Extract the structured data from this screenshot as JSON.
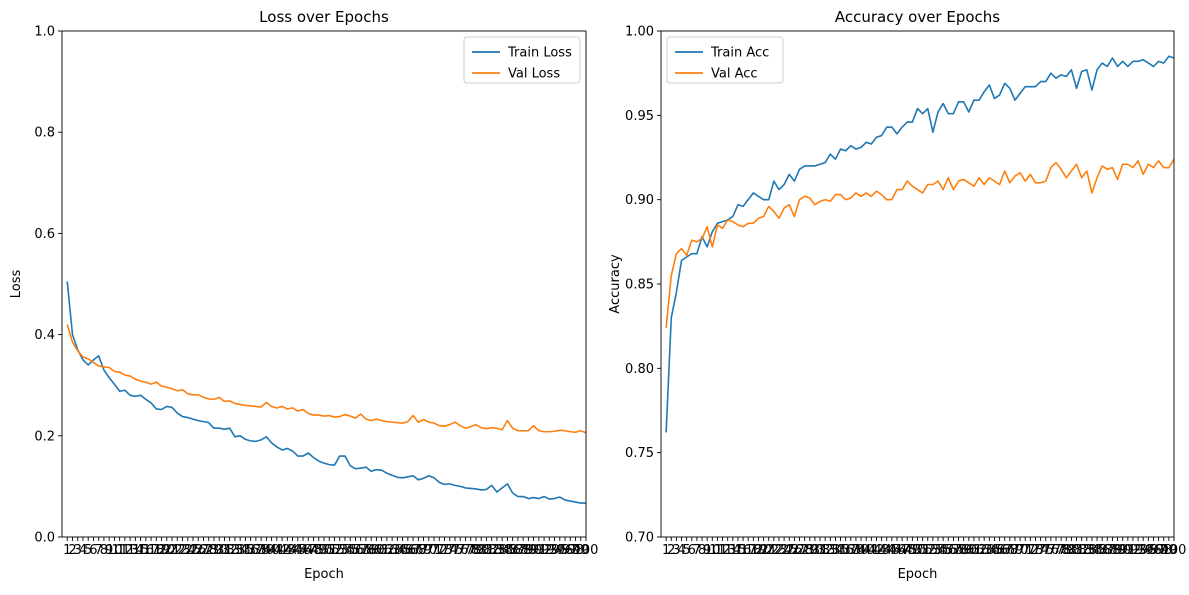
{
  "chart_data": [
    {
      "type": "line",
      "title": "Loss over Epochs",
      "xlabel": "Epoch",
      "ylabel": "Loss",
      "ylim": [
        0,
        1.0
      ],
      "yticks": [
        "0.0",
        "0.2",
        "0.4",
        "0.6",
        "0.8",
        "1.0"
      ],
      "xlim": [
        0,
        100
      ],
      "legend": "top-right",
      "grid": false,
      "series": [
        {
          "name": "Train Loss",
          "color": "#1f77b4",
          "values": [
            0.505,
            0.4,
            0.37,
            0.35,
            0.34,
            0.35,
            0.358,
            0.33,
            0.315,
            0.302,
            0.288,
            0.29,
            0.28,
            0.278,
            0.28,
            0.272,
            0.265,
            0.253,
            0.252,
            0.258,
            0.256,
            0.245,
            0.238,
            0.236,
            0.233,
            0.23,
            0.228,
            0.226,
            0.215,
            0.215,
            0.213,
            0.215,
            0.198,
            0.2,
            0.193,
            0.19,
            0.189,
            0.192,
            0.198,
            0.186,
            0.178,
            0.172,
            0.175,
            0.17,
            0.16,
            0.16,
            0.166,
            0.157,
            0.15,
            0.146,
            0.143,
            0.142,
            0.16,
            0.16,
            0.141,
            0.135,
            0.136,
            0.138,
            0.13,
            0.133,
            0.132,
            0.126,
            0.122,
            0.118,
            0.117,
            0.119,
            0.121,
            0.113,
            0.116,
            0.121,
            0.117,
            0.108,
            0.104,
            0.105,
            0.102,
            0.1,
            0.097,
            0.096,
            0.095,
            0.093,
            0.094,
            0.102,
            0.089,
            0.097,
            0.105,
            0.087,
            0.08,
            0.08,
            0.076,
            0.078,
            0.076,
            0.08,
            0.075,
            0.076,
            0.079,
            0.073,
            0.071,
            0.069,
            0.067,
            0.067
          ]
        },
        {
          "name": "Val Loss",
          "color": "#ff7f0e",
          "values": [
            0.42,
            0.385,
            0.368,
            0.356,
            0.352,
            0.345,
            0.338,
            0.336,
            0.335,
            0.327,
            0.326,
            0.32,
            0.318,
            0.312,
            0.308,
            0.306,
            0.302,
            0.306,
            0.298,
            0.296,
            0.293,
            0.289,
            0.291,
            0.283,
            0.281,
            0.281,
            0.276,
            0.273,
            0.272,
            0.276,
            0.268,
            0.269,
            0.264,
            0.262,
            0.26,
            0.259,
            0.258,
            0.257,
            0.266,
            0.258,
            0.255,
            0.258,
            0.253,
            0.255,
            0.249,
            0.252,
            0.244,
            0.241,
            0.241,
            0.239,
            0.24,
            0.237,
            0.238,
            0.242,
            0.239,
            0.235,
            0.243,
            0.233,
            0.23,
            0.233,
            0.23,
            0.228,
            0.227,
            0.226,
            0.225,
            0.228,
            0.24,
            0.227,
            0.232,
            0.227,
            0.225,
            0.22,
            0.219,
            0.222,
            0.227,
            0.22,
            0.215,
            0.218,
            0.222,
            0.216,
            0.214,
            0.216,
            0.215,
            0.212,
            0.23,
            0.215,
            0.21,
            0.21,
            0.21,
            0.22,
            0.21,
            0.208,
            0.208,
            0.209,
            0.211,
            0.21,
            0.208,
            0.207,
            0.21,
            0.206
          ]
        }
      ]
    },
    {
      "type": "line",
      "title": "Accuracy over Epochs",
      "xlabel": "Epoch",
      "ylabel": "Accuracy",
      "ylim": [
        0.7,
        1.0
      ],
      "yticks": [
        "0.70",
        "0.75",
        "0.80",
        "0.85",
        "0.90",
        "0.95",
        "1.00"
      ],
      "xlim": [
        0,
        100
      ],
      "legend": "top-left",
      "grid": false,
      "series": [
        {
          "name": "Train Acc",
          "color": "#1f77b4",
          "values": [
            0.762,
            0.83,
            0.845,
            0.864,
            0.866,
            0.868,
            0.868,
            0.878,
            0.872,
            0.881,
            0.886,
            0.887,
            0.888,
            0.89,
            0.897,
            0.896,
            0.9,
            0.904,
            0.902,
            0.9,
            0.9,
            0.911,
            0.906,
            0.909,
            0.915,
            0.911,
            0.918,
            0.92,
            0.92,
            0.92,
            0.921,
            0.922,
            0.927,
            0.924,
            0.93,
            0.929,
            0.932,
            0.93,
            0.931,
            0.934,
            0.933,
            0.937,
            0.938,
            0.943,
            0.943,
            0.939,
            0.943,
            0.946,
            0.946,
            0.954,
            0.951,
            0.954,
            0.94,
            0.952,
            0.957,
            0.951,
            0.951,
            0.958,
            0.958,
            0.952,
            0.959,
            0.959,
            0.964,
            0.968,
            0.96,
            0.962,
            0.969,
            0.966,
            0.959,
            0.963,
            0.967,
            0.967,
            0.967,
            0.97,
            0.97,
            0.975,
            0.972,
            0.974,
            0.973,
            0.977,
            0.966,
            0.976,
            0.977,
            0.965,
            0.977,
            0.981,
            0.979,
            0.984,
            0.979,
            0.982,
            0.979,
            0.982,
            0.982,
            0.983,
            0.981,
            0.979,
            0.982,
            0.981,
            0.985,
            0.984
          ]
        },
        {
          "name": "Val Acc",
          "color": "#ff7f0e",
          "values": [
            0.824,
            0.855,
            0.868,
            0.871,
            0.867,
            0.876,
            0.875,
            0.877,
            0.884,
            0.872,
            0.885,
            0.883,
            0.888,
            0.887,
            0.885,
            0.884,
            0.886,
            0.886,
            0.889,
            0.89,
            0.896,
            0.893,
            0.889,
            0.895,
            0.897,
            0.89,
            0.9,
            0.902,
            0.901,
            0.897,
            0.899,
            0.9,
            0.899,
            0.903,
            0.903,
            0.9,
            0.901,
            0.904,
            0.902,
            0.904,
            0.902,
            0.905,
            0.903,
            0.9,
            0.9,
            0.906,
            0.906,
            0.911,
            0.908,
            0.906,
            0.904,
            0.909,
            0.909,
            0.911,
            0.906,
            0.913,
            0.906,
            0.911,
            0.912,
            0.91,
            0.908,
            0.913,
            0.909,
            0.913,
            0.911,
            0.909,
            0.917,
            0.91,
            0.914,
            0.916,
            0.911,
            0.915,
            0.91,
            0.91,
            0.911,
            0.919,
            0.922,
            0.918,
            0.913,
            0.917,
            0.921,
            0.913,
            0.917,
            0.904,
            0.913,
            0.92,
            0.918,
            0.919,
            0.912,
            0.921,
            0.921,
            0.919,
            0.923,
            0.915,
            0.921,
            0.919,
            0.923,
            0.919,
            0.919,
            0.924
          ]
        }
      ]
    }
  ]
}
